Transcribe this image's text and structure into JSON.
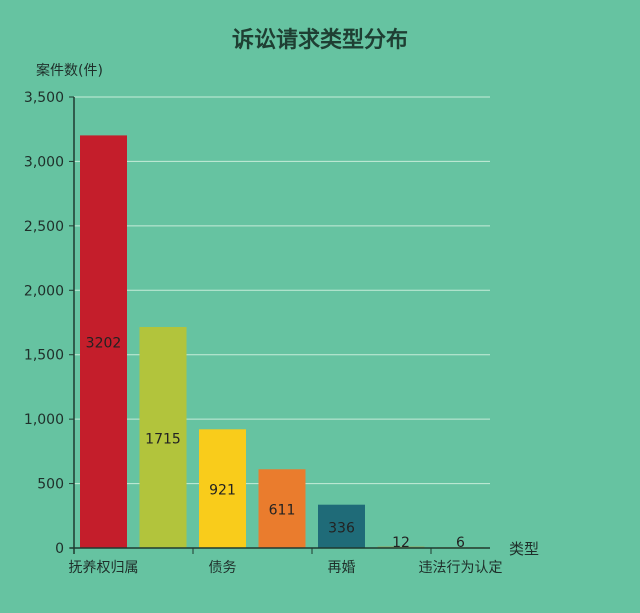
{
  "chart_data": {
    "type": "bar",
    "title": "诉讼请求类型分布",
    "ylabel": "案件数(件)",
    "xlabel": "类型",
    "categories": [
      "抚养权归属",
      "",
      "债务",
      "",
      "再婚",
      "",
      "违法行为认定"
    ],
    "values": [
      3202,
      1715,
      921,
      611,
      336,
      12,
      6
    ],
    "colors": [
      "#c41e2b",
      "#b2c43c",
      "#f9cc1b",
      "#ea7c2d",
      "#1f6b78",
      "#8fae6a",
      "#8fae6a"
    ],
    "ylim": [
      0,
      3500
    ],
    "yticks": [
      0,
      500,
      1000,
      1500,
      2000,
      2500,
      3000,
      3500
    ],
    "ytick_labels": [
      "0",
      "500",
      "1,000",
      "1,500",
      "2,000",
      "2,500",
      "3,000",
      "3,500"
    ],
    "grid": true,
    "background": "#66c3a1"
  }
}
